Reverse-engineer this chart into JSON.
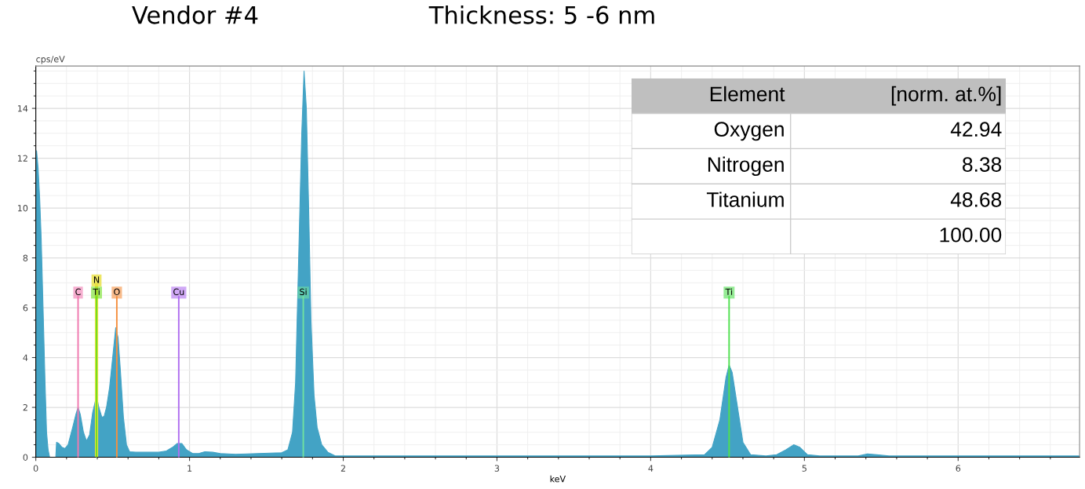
{
  "chart_data": [
    {
      "type": "area",
      "title": "Vendor #4",
      "subtitle": "Thickness: 5 -6 nm",
      "xlabel": "keV",
      "ylabel": "cps/eV",
      "xlim": [
        0,
        6.79
      ],
      "ylim": [
        0,
        15.7
      ],
      "xticks": [
        0,
        1,
        2,
        3,
        4,
        5,
        6
      ],
      "yticks": [
        0,
        2,
        4,
        6,
        8,
        10,
        12,
        14
      ],
      "grid": true,
      "series": [
        {
          "color": "#43a3c5",
          "x": [
            0.0,
            0.005,
            0.015,
            0.025,
            0.035,
            0.045,
            0.06,
            0.07,
            0.08,
            0.09,
            0.13,
            0.135,
            0.15,
            0.17,
            0.19,
            0.21,
            0.24,
            0.26,
            0.275,
            0.29,
            0.31,
            0.33,
            0.35,
            0.37,
            0.395,
            0.41,
            0.43,
            0.445,
            0.46,
            0.48,
            0.5,
            0.52,
            0.535,
            0.55,
            0.57,
            0.59,
            0.61,
            0.65,
            0.75,
            0.8,
            0.85,
            0.89,
            0.92,
            0.95,
            0.98,
            1.02,
            1.06,
            1.1,
            1.15,
            1.2,
            1.3,
            1.45,
            1.6,
            1.64,
            1.67,
            1.69,
            1.71,
            1.73,
            1.745,
            1.76,
            1.775,
            1.79,
            1.81,
            1.83,
            1.86,
            1.9,
            1.95,
            2.0,
            2.5,
            3.0,
            4.0,
            4.35,
            4.4,
            4.45,
            4.49,
            4.51,
            4.53,
            4.56,
            4.6,
            4.65,
            4.75,
            4.82,
            4.88,
            4.93,
            4.97,
            5.02,
            5.1,
            5.35,
            5.41,
            5.47,
            5.55,
            6.0,
            6.4,
            6.79
          ],
          "values": [
            0.5,
            12.3,
            11.6,
            10.4,
            8.8,
            6.5,
            3.0,
            1.0,
            0.3,
            0.0,
            0.0,
            0.6,
            0.55,
            0.4,
            0.35,
            0.5,
            1.2,
            1.7,
            2.0,
            1.7,
            1.0,
            0.65,
            0.9,
            1.8,
            2.45,
            2.0,
            1.6,
            1.65,
            2.0,
            2.8,
            4.0,
            5.2,
            4.8,
            3.5,
            1.6,
            0.5,
            0.22,
            0.2,
            0.2,
            0.2,
            0.25,
            0.4,
            0.55,
            0.55,
            0.3,
            0.15,
            0.15,
            0.22,
            0.2,
            0.15,
            0.12,
            0.15,
            0.18,
            0.3,
            1.0,
            3.0,
            8.0,
            13.0,
            15.5,
            14.0,
            10.0,
            5.5,
            2.5,
            1.2,
            0.5,
            0.2,
            0.05,
            0.05,
            0.05,
            0.05,
            0.05,
            0.1,
            0.4,
            1.5,
            3.2,
            3.7,
            3.4,
            2.2,
            0.6,
            0.1,
            0.05,
            0.1,
            0.3,
            0.5,
            0.4,
            0.1,
            0.05,
            0.05,
            0.13,
            0.1,
            0.05,
            0.05,
            0.05,
            0.05
          ]
        }
      ],
      "ref_lines": [
        {
          "axis": "x",
          "value": 0.275,
          "label": "C",
          "color": "#f07ab0"
        },
        {
          "axis": "x",
          "value": 0.395,
          "label": "Ti",
          "color": "#70e020"
        },
        {
          "axis": "x",
          "value": 0.395,
          "label": "N",
          "color": "#e8e040"
        },
        {
          "axis": "x",
          "value": 0.527,
          "label": "O",
          "color": "#f59040"
        },
        {
          "axis": "x",
          "value": 0.93,
          "label": "Cu",
          "color": "#b070f0"
        },
        {
          "axis": "x",
          "value": 1.74,
          "label": "Si",
          "color": "#70e0a0"
        },
        {
          "axis": "x",
          "value": 4.51,
          "label": "Ti",
          "color": "#50e050"
        }
      ]
    },
    {
      "type": "other",
      "xlabel": "Element",
      "ylabel": "[norm. at.%]",
      "categories": [
        "Oxygen",
        "Nitrogen",
        "Titanium"
      ],
      "values": [
        42.94,
        8.38,
        48.68
      ],
      "totals": [
        "100.00"
      ],
      "data_labels": true
    }
  ]
}
